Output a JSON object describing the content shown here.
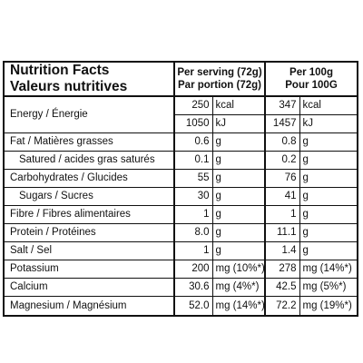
{
  "header": {
    "title_en": "Nutrition Facts",
    "title_fr": "Valeurs nutritives",
    "col1_en": "Per serving (72g)",
    "col1_fr": "Par portion (72g)",
    "col2_en": "Per 100g",
    "col2_fr": "Pour 100G"
  },
  "rows": [
    {
      "label": "Energy / Énergie",
      "v1": "250",
      "u1": "kcal",
      "v2": "347",
      "u2": "kcal"
    },
    {
      "label": "",
      "v1": "1050",
      "u1": "kJ",
      "v2": "1457",
      "u2": "kJ"
    },
    {
      "label": "Fat / Matières grasses",
      "v1": "0.6",
      "u1": "g",
      "v2": "0.8",
      "u2": "g"
    },
    {
      "label": "Satured / acides gras saturés",
      "v1": "0.1",
      "u1": "g",
      "v2": "0.2",
      "u2": "g"
    },
    {
      "label": "Carbohydrates / Glucides",
      "v1": "55",
      "u1": "g",
      "v2": "76",
      "u2": "g"
    },
    {
      "label": "Sugars / Sucres",
      "v1": "30",
      "u1": "g",
      "v2": "41",
      "u2": "g"
    },
    {
      "label": "Fibre / Fibres alimentaires",
      "v1": "1",
      "u1": "g",
      "v2": "1",
      "u2": "g"
    },
    {
      "label": "Protein / Protéines",
      "v1": "8.0",
      "u1": "g",
      "v2": "11.1",
      "u2": "g"
    },
    {
      "label": "Salt / Sel",
      "v1": "1",
      "u1": "g",
      "v2": "1.4",
      "u2": "g"
    },
    {
      "label": "Potassium",
      "v1": "200",
      "u1": "mg (10%*)",
      "v2": "278",
      "u2": "mg (14%*)"
    },
    {
      "label": "Calcium",
      "v1": "30.6",
      "u1": "mg (4%*)",
      "v2": "42.5",
      "u2": "mg (5%*)"
    },
    {
      "label": "Magnesium / Magnésium",
      "v1": "52.0",
      "u1": "mg (14%*)",
      "v2": "72.2",
      "u2": "mg (19%*)"
    }
  ]
}
